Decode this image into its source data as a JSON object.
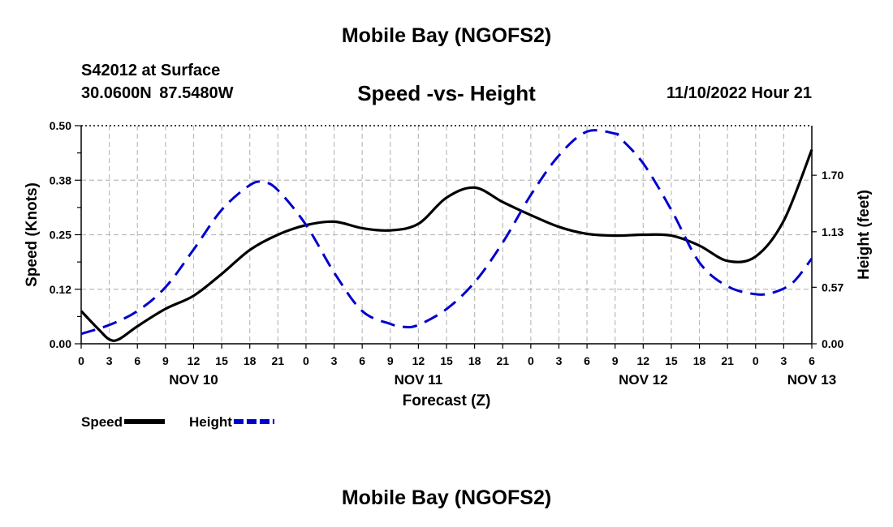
{
  "header": {
    "title": "Mobile Bay (NGOFS2)",
    "station": "S42012 at Surface",
    "coords": "30.0600N  87.5480W",
    "subtitle": "Speed -vs- Height",
    "run_time": "11/10/2022 Hour 21"
  },
  "footer": {
    "title": "Mobile Bay (NGOFS2)"
  },
  "chart_data": {
    "type": "line",
    "title": "Speed -vs- Height",
    "xlabel": "Forecast (Z)",
    "ylabel": "Speed (Knots)",
    "y2label": "Height (feet)",
    "xlim": [
      0,
      78
    ],
    "ylim": [
      0,
      0.5
    ],
    "y2lim": [
      0,
      2.2
    ],
    "x_ticks": [
      0,
      3,
      6,
      9,
      12,
      15,
      18,
      21,
      24,
      27,
      30,
      33,
      36,
      39,
      42,
      45,
      48,
      51,
      54,
      57,
      60,
      63,
      66,
      69,
      72,
      75,
      78
    ],
    "x_tick_labels": [
      "0",
      "3",
      "6",
      "9",
      "12",
      "15",
      "18",
      "21",
      "0",
      "3",
      "6",
      "9",
      "12",
      "15",
      "18",
      "21",
      "0",
      "3",
      "6",
      "9",
      "12",
      "15",
      "18",
      "21",
      "0",
      "3",
      "6"
    ],
    "date_labels": [
      {
        "x": 12,
        "label": "NOV 10"
      },
      {
        "x": 36,
        "label": "NOV 11"
      },
      {
        "x": 60,
        "label": "NOV 12"
      },
      {
        "x": 78,
        "label": "NOV 13"
      }
    ],
    "y_ticks": [
      0.0,
      0.125,
      0.25,
      0.375,
      0.5
    ],
    "y_tick_labels": [
      "0.00",
      "0.12",
      "0.25",
      "0.38",
      "0.50"
    ],
    "y2_ticks": [
      0.0,
      0.57,
      1.13,
      1.7
    ],
    "y2_tick_labels": [
      "0.00",
      "0.57",
      "1.13",
      "1.70"
    ],
    "grid": true,
    "legend": "bottom-left",
    "series": [
      {
        "name": "Speed",
        "axis": "left",
        "color": "#000000",
        "dash": false,
        "x": [
          0,
          2,
          3,
          4,
          6,
          9,
          12,
          15,
          18,
          21,
          24,
          27,
          30,
          33,
          36,
          39,
          42,
          45,
          48,
          51,
          54,
          57,
          60,
          63,
          66,
          69,
          72,
          75,
          78
        ],
        "values": [
          0.075,
          0.03,
          0.01,
          0.01,
          0.04,
          0.08,
          0.11,
          0.16,
          0.215,
          0.25,
          0.272,
          0.28,
          0.265,
          0.26,
          0.275,
          0.335,
          0.358,
          0.325,
          0.295,
          0.268,
          0.252,
          0.248,
          0.25,
          0.248,
          0.225,
          0.19,
          0.2,
          0.282,
          0.445
        ]
      },
      {
        "name": "Height",
        "axis": "right",
        "color": "#0000cc",
        "dash": true,
        "x": [
          0,
          3,
          6,
          9,
          12,
          15,
          18,
          19.5,
          21,
          24,
          27,
          30,
          33,
          34.5,
          36,
          39,
          42,
          45,
          48,
          51,
          54,
          57,
          57.5,
          60,
          63,
          66,
          69,
          72,
          74,
          76,
          78
        ],
        "values": [
          0.1,
          0.19,
          0.33,
          0.57,
          0.95,
          1.35,
          1.6,
          1.63,
          1.55,
          1.2,
          0.72,
          0.33,
          0.2,
          0.17,
          0.19,
          0.35,
          0.62,
          1.02,
          1.5,
          1.9,
          2.14,
          2.12,
          2.08,
          1.82,
          1.35,
          0.82,
          0.58,
          0.5,
          0.52,
          0.62,
          0.86
        ]
      }
    ]
  }
}
